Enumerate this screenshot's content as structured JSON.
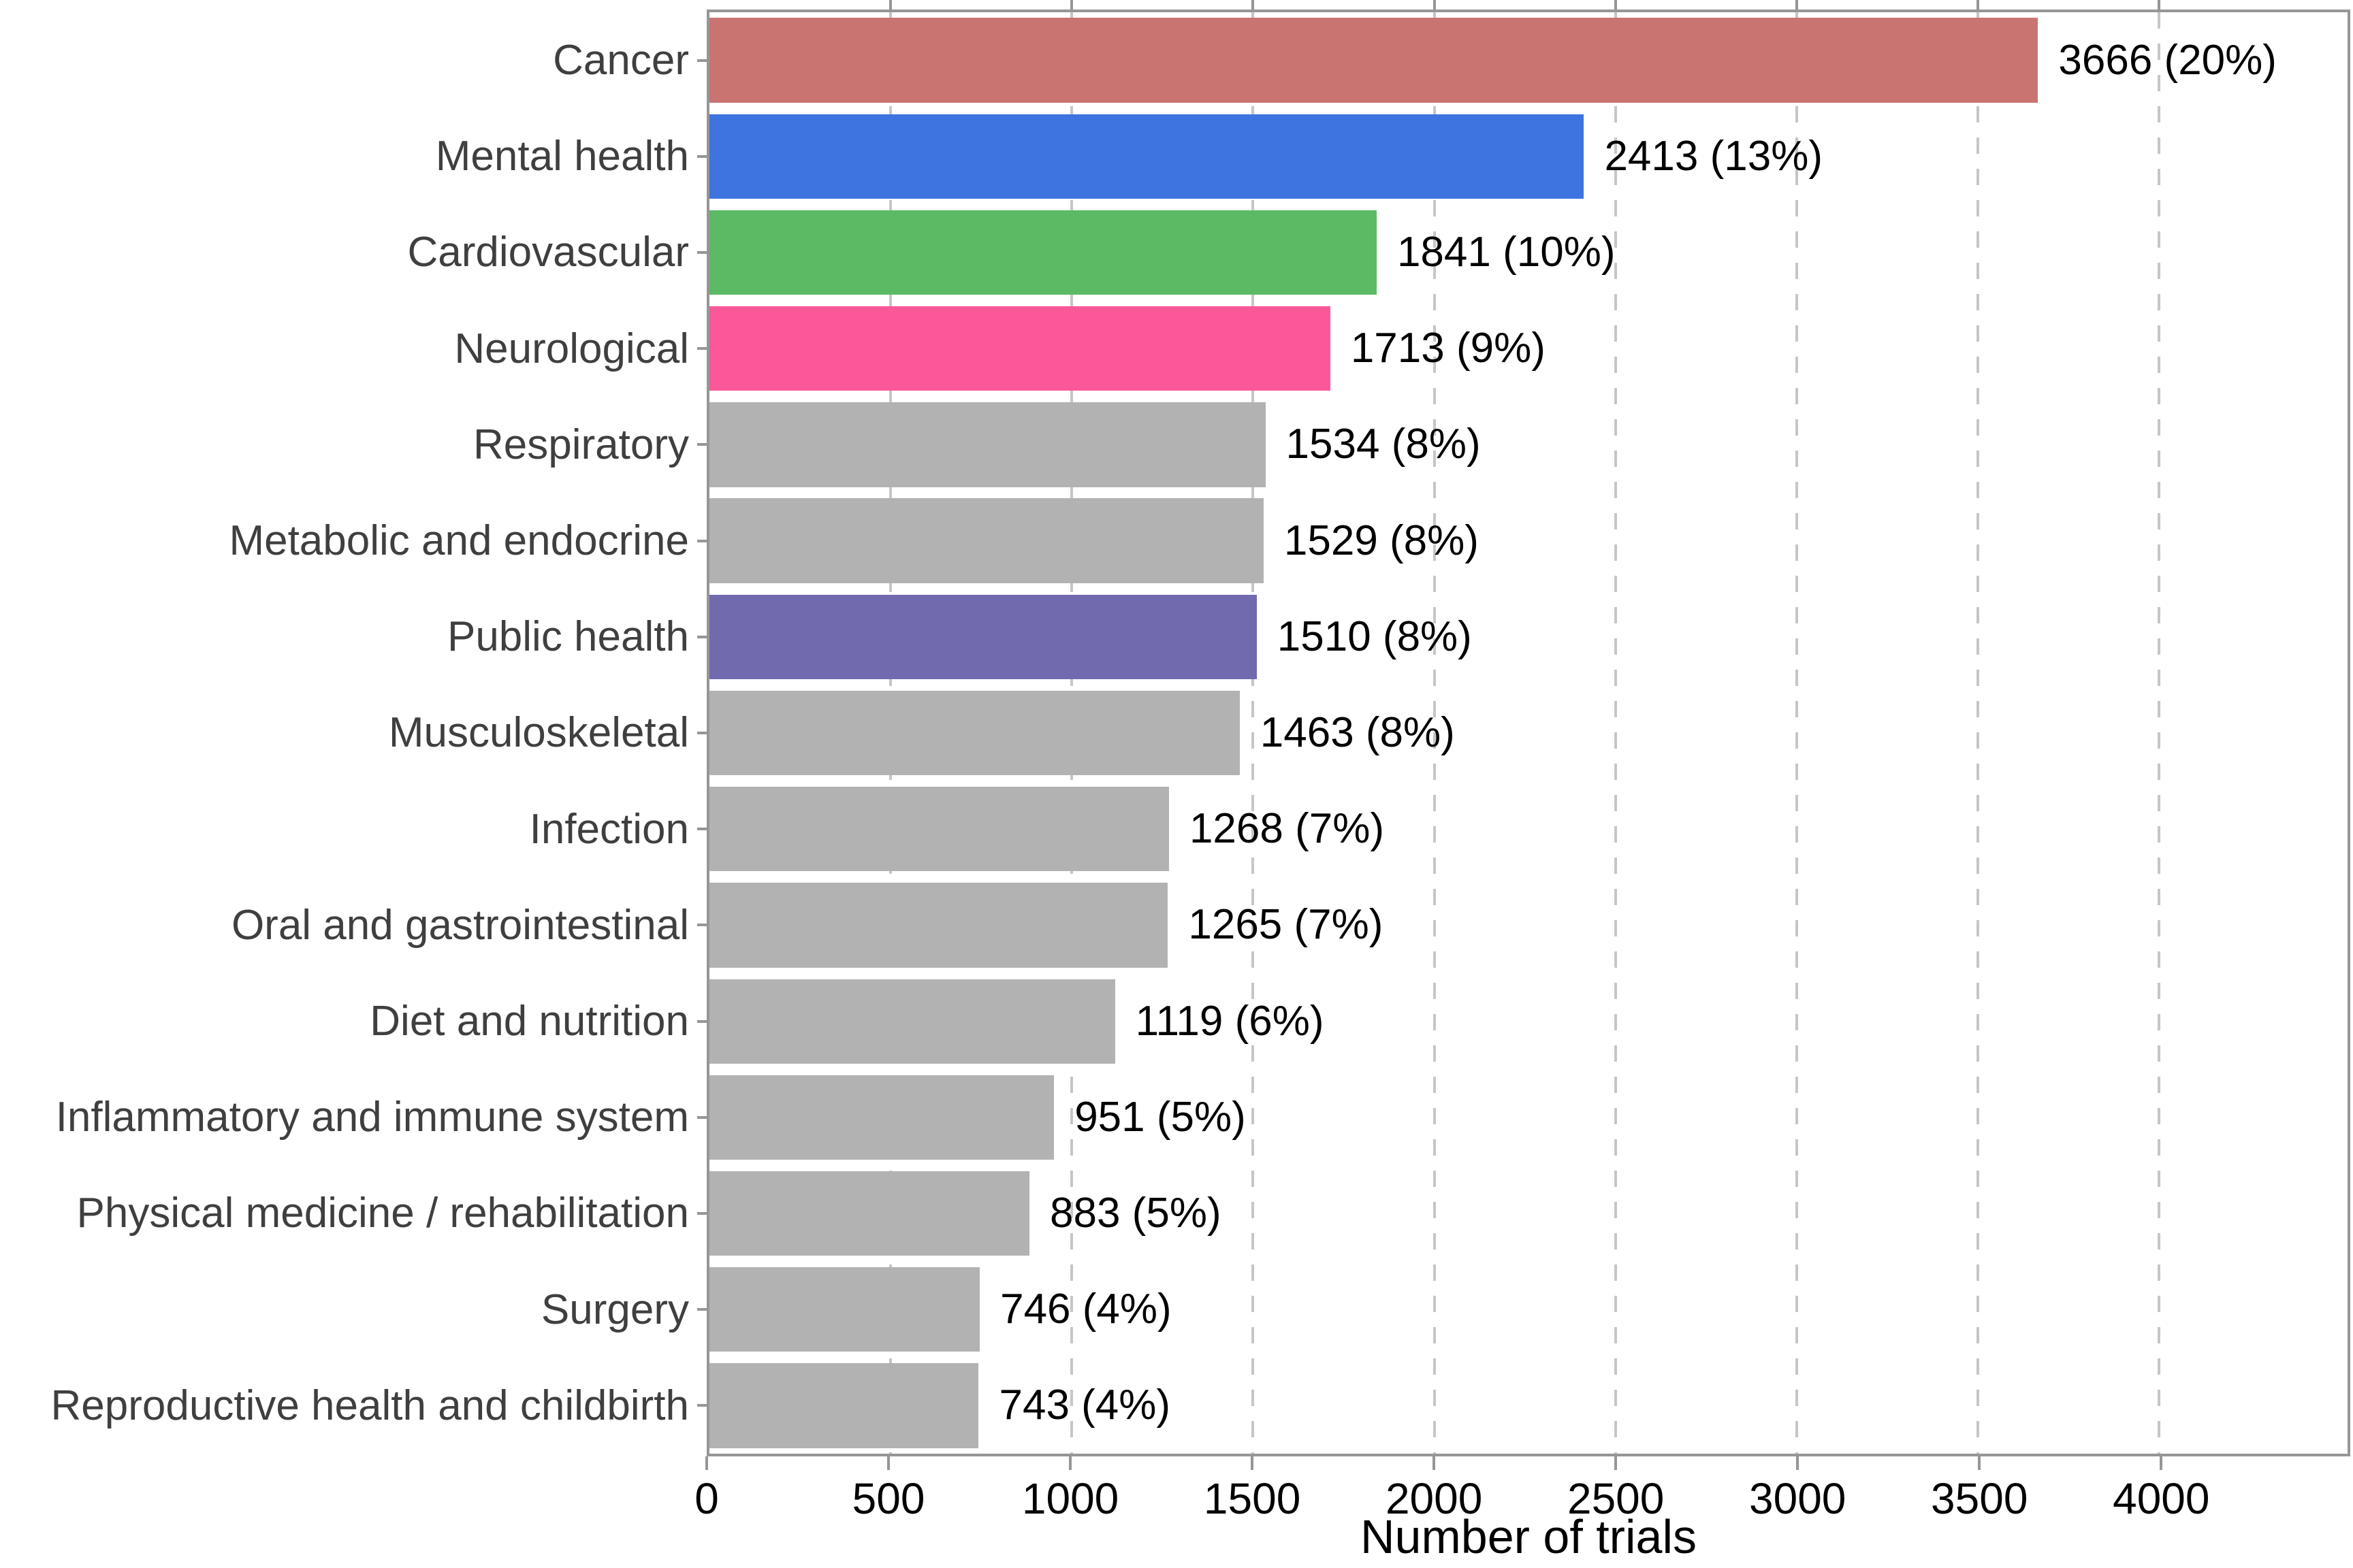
{
  "chart_data": {
    "type": "bar",
    "orientation": "horizontal",
    "title": "",
    "xlabel": "Number of trials",
    "ylabel": "",
    "xlim": [
      0,
      4520
    ],
    "x_ticks": [
      0,
      500,
      1000,
      1500,
      2000,
      2500,
      3000,
      3500,
      4000
    ],
    "grid": "vertical-dashed-major",
    "legend": "none",
    "categories": [
      "Cancer",
      "Mental health",
      "Cardiovascular",
      "Neurological",
      "Respiratory",
      "Metabolic and endocrine",
      "Public health",
      "Musculoskeletal",
      "Infection",
      "Oral and gastrointestinal",
      "Diet and nutrition",
      "Inflammatory and immune system",
      "Physical medicine / rehabilitation",
      "Surgery",
      "Reproductive health and childbirth"
    ],
    "values": [
      3666,
      2413,
      1841,
      1713,
      1534,
      1529,
      1510,
      1463,
      1268,
      1265,
      1119,
      951,
      883,
      746,
      743
    ],
    "percents": [
      20,
      13,
      10,
      9,
      8,
      8,
      8,
      8,
      7,
      7,
      6,
      5,
      5,
      4,
      4
    ],
    "value_labels": [
      "3666 (20%)",
      "2413 (13%)",
      "1841 (10%)",
      "1713 (9%)",
      "1534 (8%)",
      "1529 (8%)",
      "1510 (8%)",
      "1463 (8%)",
      "1268 (7%)",
      "1265 (7%)",
      "1119 (6%)",
      "951 (5%)",
      "883 (5%)",
      "746 (4%)",
      "743 (4%)"
    ],
    "bar_colors": [
      "#ca7472",
      "#3d74e0",
      "#5cba65",
      "#fa5899",
      "#b2b2b2",
      "#b2b2b2",
      "#716aaf",
      "#b2b2b2",
      "#b2b2b2",
      "#b2b2b2",
      "#b2b2b2",
      "#b2b2b2",
      "#b2b2b2",
      "#b2b2b2",
      "#b2b2b2"
    ]
  },
  "colors": {
    "panel_border": "#969696",
    "gridline": "#c6c6c6",
    "tick": "#969696",
    "category_text": "#3f3f3f",
    "value_text": "#000000"
  }
}
